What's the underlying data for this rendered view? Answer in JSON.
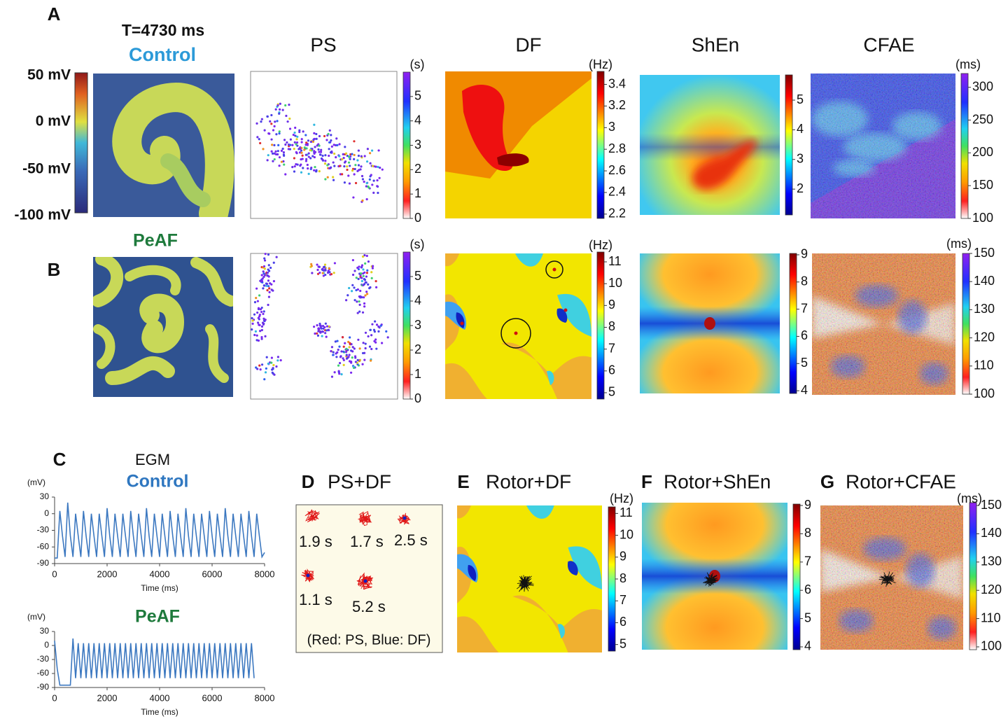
{
  "panel_A": {
    "label": "A",
    "time": "T=4730 ms",
    "condition": "Control",
    "membrane_ticks": [
      "50 mV",
      "0 mV",
      "-50 mV",
      "-100 mV"
    ]
  },
  "panel_B": {
    "label": "B",
    "condition": "PeAF"
  },
  "column_titles": [
    "PS",
    "DF",
    "ShEn",
    "CFAE"
  ],
  "colorbars_A": [
    {
      "unit": "(s)",
      "lim": [
        0,
        6
      ],
      "ticks": [
        0,
        1,
        2,
        3,
        4,
        5
      ]
    },
    {
      "unit": "(Hz)",
      "lim": [
        2.16,
        3.52
      ],
      "ticks": [
        2.2,
        2.4,
        2.6,
        2.8,
        3,
        3.2,
        3.4
      ]
    },
    {
      "lim": [
        1.13,
        5.85
      ],
      "ticks": [
        2,
        3,
        4,
        5
      ]
    },
    {
      "unit": "(ms)",
      "lim": [
        100,
        321
      ],
      "ticks": [
        100,
        150,
        200,
        250,
        300
      ]
    }
  ],
  "colorbars_B": [
    {
      "unit": "(s)",
      "lim": [
        0,
        6
      ],
      "ticks": [
        0,
        1,
        2,
        3,
        4,
        5
      ]
    },
    {
      "unit": "(Hz)",
      "lim": [
        4.71,
        11.45
      ],
      "ticks": [
        5,
        6,
        7,
        8,
        9,
        10,
        11
      ]
    },
    {
      "lim": [
        3.9,
        9.05
      ],
      "ticks": [
        4,
        5,
        6,
        7,
        8,
        9
      ]
    },
    {
      "unit": "(ms)",
      "lim": [
        100,
        150
      ],
      "ticks": [
        100,
        110,
        120,
        130,
        140,
        150
      ]
    }
  ],
  "panel_C": {
    "label": "C",
    "title": "EGM",
    "y_unit": "(mV)",
    "x_label": "Time (ms)",
    "ylim": [
      -90,
      30
    ],
    "yticks": [
      30,
      0,
      -30,
      -60,
      -90
    ],
    "xlim": [
      0,
      8000
    ],
    "xticks": [
      0,
      2000,
      4000,
      6000,
      8000
    ],
    "x": [
      0,
      100,
      200,
      300,
      400,
      500,
      600,
      700,
      800,
      900,
      1000,
      1100,
      1200,
      1300,
      1400,
      1500,
      1600,
      1700,
      1800,
      1900,
      2000,
      2100,
      2200,
      2300,
      2400,
      2500,
      2600,
      2700,
      2800,
      2900,
      3000,
      3100,
      3200,
      3300,
      3400,
      3500,
      3600,
      3700,
      3800,
      3900,
      4000,
      4100,
      4200,
      4300,
      4400,
      4500,
      4600,
      4700,
      4800,
      4900,
      5000,
      5100,
      5200,
      5300,
      5400,
      5500,
      5600,
      5700,
      5800,
      5900,
      6000,
      6100,
      6200,
      6300,
      6400,
      6500,
      6600,
      6700,
      6800,
      6900,
      7000,
      7100,
      7200,
      7300,
      7400,
      7500,
      7600,
      7700,
      7800,
      7900,
      8000
    ],
    "traces": [
      {
        "name": "Control",
        "color": "#3c78c0",
        "values": [
          -80,
          -80,
          5,
          -40,
          -78,
          20,
          -40,
          -78,
          0,
          -40,
          -78,
          5,
          -40,
          -78,
          0,
          -40,
          -78,
          0,
          -40,
          -78,
          10,
          -40,
          -78,
          0,
          -40,
          -78,
          0,
          -40,
          -78,
          5,
          -40,
          -78,
          0,
          -40,
          -78,
          10,
          -40,
          -78,
          0,
          -40,
          -78,
          0,
          -40,
          -78,
          5,
          -40,
          -78,
          0,
          -40,
          -78,
          10,
          -40,
          -78,
          0,
          -40,
          -78,
          0,
          -40,
          -78,
          5,
          -40,
          -78,
          0,
          -40,
          -78,
          10,
          -40,
          -78,
          0,
          -40,
          -78,
          0,
          -40,
          -78,
          5,
          -40,
          -78,
          0,
          -40,
          -78,
          -70
        ]
      },
      {
        "name": "PeAF",
        "color": "#3c78c0",
        "values": [
          10,
          -50,
          -85,
          -85,
          -85,
          -85,
          -85,
          15,
          -70,
          5,
          -70,
          5,
          -70,
          5,
          -70,
          5,
          -70,
          5,
          -70,
          5,
          -70,
          5,
          -70,
          5,
          -70,
          5,
          -70,
          5,
          -70,
          5,
          -70,
          5,
          -70,
          5,
          -70,
          5,
          -70,
          5,
          -70,
          5,
          -70,
          5,
          -70,
          5,
          -70,
          5,
          -70,
          5,
          -70,
          5,
          -70,
          5,
          -70,
          5,
          -70,
          5,
          -70,
          5,
          -70,
          5,
          -70,
          5,
          -70,
          5,
          -70,
          5,
          -70,
          5,
          -70,
          5,
          -70,
          5,
          -70,
          5,
          -70,
          5,
          -70
        ]
      }
    ]
  },
  "panel_D": {
    "label": "D",
    "title": "PS+DF",
    "durations": [
      "1.9 s",
      "1.7 s",
      "2.5 s",
      "1.1 s",
      "5.2 s"
    ],
    "note": "(Red: PS, Blue: DF)"
  },
  "panel_E": {
    "label": "E",
    "title": "Rotor+DF",
    "colorbar": {
      "unit": "(Hz)",
      "lim": [
        4.7,
        11.3
      ],
      "ticks": [
        5,
        6,
        7,
        8,
        9,
        10,
        11
      ]
    }
  },
  "panel_F": {
    "label": "F",
    "title": "Rotor+ShEn",
    "colorbar": {
      "lim": [
        3.9,
        9.05
      ],
      "ticks": [
        4,
        5,
        6,
        7,
        8,
        9
      ]
    }
  },
  "panel_G": {
    "label": "G",
    "title": "Rotor+CFAE",
    "colorbar": {
      "unit": "(ms)",
      "lim": [
        99,
        151
      ],
      "ticks": [
        100,
        110,
        120,
        130,
        140,
        150
      ]
    }
  }
}
